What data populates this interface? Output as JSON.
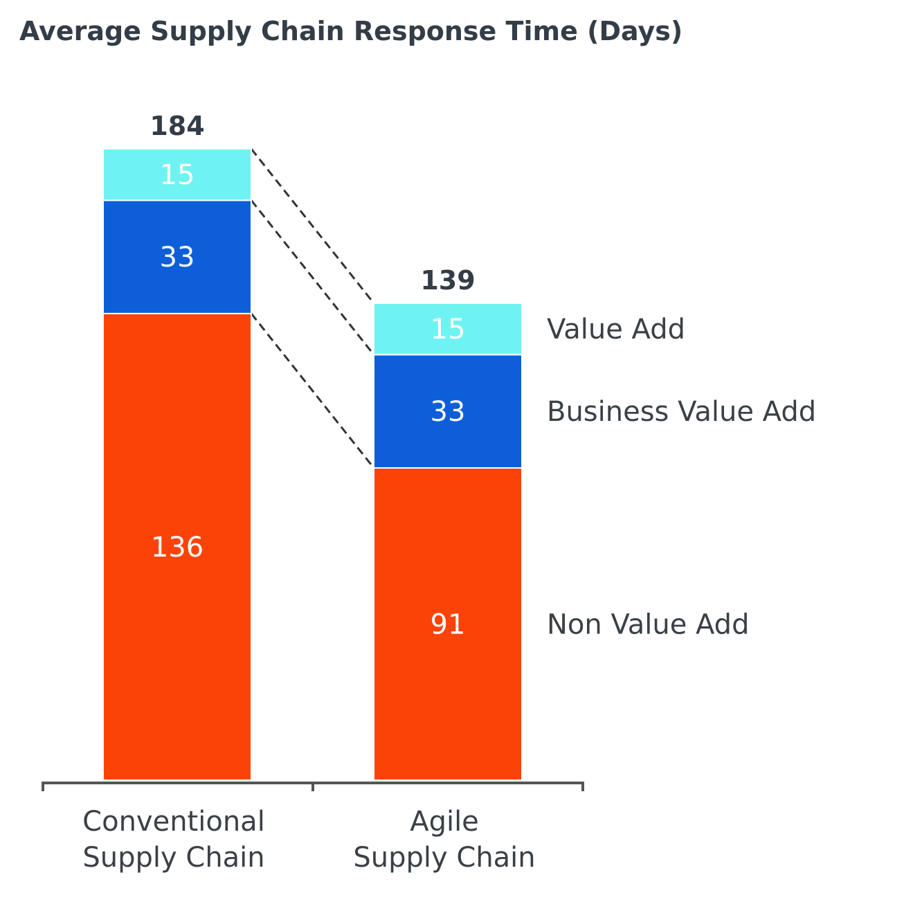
{
  "chart_data": {
    "type": "bar",
    "stacked": true,
    "title": "Average Supply Chain Response Time (Days)",
    "categories": [
      "Conventional\nSupply Chain",
      "Agile\nSupply Chain"
    ],
    "totals": [
      184,
      139
    ],
    "series": [
      {
        "name": "Non Value Add",
        "values": [
          136,
          91
        ],
        "color": "#fb4308"
      },
      {
        "name": "Business Value Add",
        "values": [
          33,
          33
        ],
        "color": "#0d5ed8"
      },
      {
        "name": "Value Add",
        "values": [
          15,
          15
        ],
        "color": "#6ef3f2"
      }
    ],
    "ylim": [
      0,
      184
    ],
    "grid": false,
    "legend": "right-inline",
    "connector_lines": "dashed"
  }
}
